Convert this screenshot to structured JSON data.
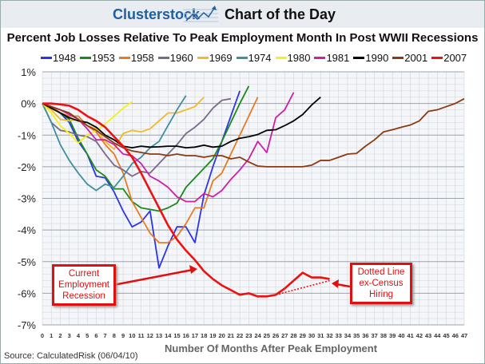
{
  "header": {
    "brand": "Clusterstock",
    "subtitle": "Chart of the Day"
  },
  "source": "Source: CalculatedRisk (06/04/10)",
  "annotations": {
    "current": "Current Employment Recession",
    "dotted": "Dotted Line ex-Census Hiring"
  },
  "chart_data": {
    "type": "line",
    "title": "Percent Job Losses Relative To Peak Employment Month In Post WWII Recessions",
    "xlabel": "Number Of Months After Peak Employment",
    "ylabel": "",
    "xlim": [
      0,
      47
    ],
    "ylim": [
      -7,
      1
    ],
    "yticks": [
      "1%",
      "0%",
      "-1%",
      "-2%",
      "-3%",
      "-4%",
      "-5%",
      "-6%",
      "-7%"
    ],
    "grid": true,
    "legend": "top",
    "series": [
      {
        "name": "1948",
        "color": "#2b35e6",
        "values": [
          0,
          -0.1,
          -0.3,
          -0.6,
          -1.2,
          -1.6,
          -2.3,
          -2.35,
          -2.8,
          -3.4,
          -3.9,
          -3.75,
          -3.4,
          -5.2,
          -4.5,
          -3.9,
          -3.9,
          -4.4,
          -2.9,
          -2.0,
          -1.2,
          -0.4,
          0.4
        ]
      },
      {
        "name": "1953",
        "color": "#1a8a1a",
        "values": [
          0,
          -0.1,
          -0.3,
          -0.5,
          -1.1,
          -1.6,
          -2.1,
          -2.3,
          -2.7,
          -2.7,
          -3.1,
          -3.3,
          -3.35,
          -3.4,
          -3.3,
          -3.15,
          -2.65,
          -2.35,
          -2.05,
          -1.75,
          -1.2,
          -0.6,
          0.0,
          0.55
        ]
      },
      {
        "name": "1958",
        "color": "#e87b22",
        "values": [
          0,
          -0.1,
          -0.3,
          -0.4,
          -0.4,
          -0.7,
          -0.9,
          -1.3,
          -1.6,
          -2.2,
          -3.1,
          -3.6,
          -4.1,
          -4.4,
          -4.4,
          -4.2,
          -3.8,
          -3.3,
          -3.3,
          -2.45,
          -2.2,
          -1.6,
          -1.0,
          -0.4,
          0.2
        ]
      },
      {
        "name": "1960",
        "color": "#7a6a8a",
        "values": [
          0,
          -0.6,
          -0.85,
          -0.9,
          -1.0,
          -1.05,
          -1.2,
          -1.6,
          -1.95,
          -2.1,
          -2.3,
          -2.15,
          -2.2,
          -1.9,
          -1.6,
          -1.3,
          -0.95,
          -0.75,
          -0.5,
          -0.15,
          0.1,
          0.15
        ]
      },
      {
        "name": "1969",
        "color": "#f2b92a",
        "values": [
          0,
          -0.2,
          -0.5,
          -0.55,
          -0.5,
          -0.7,
          -0.8,
          -1.2,
          -1.45,
          -0.95,
          -0.85,
          -0.9,
          -0.8,
          -0.55,
          -0.3,
          -0.3,
          -0.2,
          -0.1,
          0.2
        ]
      },
      {
        "name": "1974",
        "color": "#3f8f9f",
        "values": [
          0,
          -0.6,
          -1.3,
          -1.8,
          -2.2,
          -2.55,
          -2.75,
          -2.55,
          -2.65,
          -2.3,
          -1.9,
          -1.7,
          -1.4,
          -1.2,
          -0.7,
          -0.2,
          0.25
        ]
      },
      {
        "name": "1980",
        "color": "#f5f01a",
        "values": [
          0,
          -0.3,
          -0.7,
          -0.95,
          -1.25,
          -1.0,
          -0.85,
          -0.65,
          -0.4,
          -0.15,
          0.05
        ]
      },
      {
        "name": "1981",
        "color": "#cc1fa8",
        "values": [
          0,
          -0.1,
          -0.2,
          -0.35,
          -0.5,
          -0.8,
          -1.15,
          -1.15,
          -1.3,
          -1.6,
          -1.65,
          -1.9,
          -2.3,
          -2.45,
          -2.65,
          -2.95,
          -3.1,
          -3.1,
          -2.85,
          -2.95,
          -2.75,
          -2.4,
          -2.1,
          -1.75,
          -1.2,
          -1.55,
          -0.45,
          -0.2,
          0.35
        ]
      },
      {
        "name": "1990",
        "color": "#000000",
        "values": [
          0,
          -0.15,
          -0.3,
          -0.45,
          -0.55,
          -0.6,
          -0.75,
          -1.0,
          -1.15,
          -1.35,
          -1.4,
          -1.35,
          -1.38,
          -1.37,
          -1.35,
          -1.35,
          -1.4,
          -1.38,
          -1.32,
          -1.38,
          -1.35,
          -1.2,
          -1.1,
          -1.05,
          -0.98,
          -0.85,
          -0.83,
          -0.7,
          -0.55,
          -0.35,
          -0.05,
          0.2
        ]
      },
      {
        "name": "2001",
        "color": "#8b3a12",
        "values": [
          0,
          -0.1,
          -0.2,
          -0.3,
          -0.5,
          -0.7,
          -0.85,
          -1.05,
          -1.25,
          -1.4,
          -1.5,
          -1.55,
          -1.6,
          -1.6,
          -1.65,
          -1.6,
          -1.65,
          -1.65,
          -1.7,
          -1.65,
          -1.65,
          -1.75,
          -1.7,
          -1.85,
          -1.98,
          -2.0,
          -2.0,
          -2.0,
          -2.0,
          -2.0,
          -1.95,
          -1.8,
          -1.8,
          -1.7,
          -1.6,
          -1.58,
          -1.35,
          -1.15,
          -0.9,
          -0.83,
          -0.75,
          -0.68,
          -0.55,
          -0.25,
          -0.2,
          -0.1,
          0.0,
          0.15
        ]
      },
      {
        "name": "2007",
        "color": "#ee1111",
        "values": [
          0,
          0,
          -0.03,
          -0.07,
          -0.2,
          -0.4,
          -0.55,
          -0.75,
          -1.05,
          -1.35,
          -1.7,
          -2.2,
          -2.75,
          -3.3,
          -3.85,
          -4.3,
          -4.65,
          -4.95,
          -5.3,
          -5.55,
          -5.75,
          -5.9,
          -6.05,
          -6.0,
          -6.1,
          -6.1,
          -6.05,
          -5.85,
          -5.6,
          -5.35,
          -5.5,
          -5.5,
          -5.55
        ]
      }
    ],
    "dotted_ex_census": {
      "color": "#ee1111",
      "x": [
        26,
        32
      ],
      "values": [
        -6.05,
        -5.6
      ]
    }
  }
}
